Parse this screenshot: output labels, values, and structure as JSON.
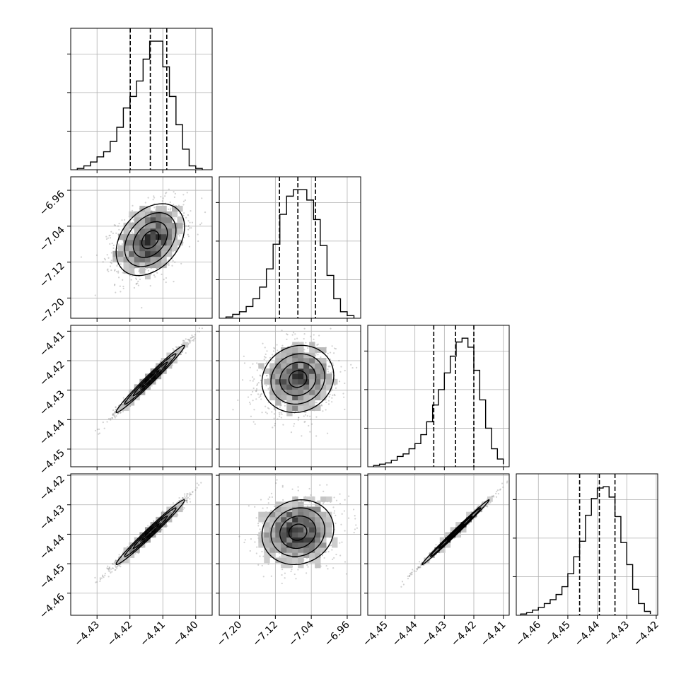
{
  "chart_data": {
    "type": "corner",
    "title": "",
    "grid": true,
    "colors": {
      "hist_line": "#000000",
      "contour": "#000000",
      "scatter": "#7f7f7f",
      "grid": "#b0b0b0",
      "density_dark": "#2b2b2b",
      "density_light": "#e6e6e6"
    },
    "parameters": [
      {
        "name": "",
        "range": [
          -4.438,
          -4.395
        ],
        "ticks": [
          -4.43,
          -4.42,
          -4.41,
          -4.4
        ],
        "tick_labels": [
          "−4.43",
          "−4.42",
          "−4.41",
          "−4.40"
        ],
        "quantiles": [
          -4.4199,
          -4.4138,
          -4.4088
        ],
        "hist": {
          "bin_edges": [
            -4.436,
            -4.434,
            -4.432,
            -4.43,
            -4.428,
            -4.426,
            -4.424,
            -4.422,
            -4.42,
            -4.418,
            -4.416,
            -4.414,
            -4.412,
            -4.41,
            -4.408,
            -4.406,
            -4.404,
            -4.402,
            -4.4,
            -4.398
          ],
          "counts": [
            1,
            3,
            6,
            10,
            14,
            22,
            33,
            48,
            57,
            69,
            86,
            100,
            100,
            80,
            57,
            35,
            16,
            3,
            1
          ]
        }
      },
      {
        "name": "",
        "range": [
          -7.245,
          -6.93
        ],
        "ticks": [
          -7.2,
          -7.12,
          -7.04,
          -6.96
        ],
        "tick_labels": [
          "−7.20",
          "−7.12",
          "−7.04",
          "−6.96"
        ],
        "quantiles": [
          -7.1108,
          -7.0699,
          -7.0306
        ],
        "hist": {
          "bin_edges": [
            -7.23,
            -7.215,
            -7.2,
            -7.185,
            -7.17,
            -7.155,
            -7.14,
            -7.125,
            -7.11,
            -7.095,
            -7.08,
            -7.065,
            -7.05,
            -7.035,
            -7.02,
            -7.005,
            -6.99,
            -6.975,
            -6.96,
            -6.945
          ],
          "counts": [
            1,
            3,
            5,
            9,
            15,
            24,
            38,
            57,
            80,
            94,
            99,
            99,
            91,
            76,
            56,
            33,
            15,
            5,
            2
          ]
        }
      },
      {
        "name": "",
        "range": [
          -4.456,
          -4.408
        ],
        "ticks": [
          -4.45,
          -4.44,
          -4.43,
          -4.42,
          -4.41
        ],
        "tick_labels": [
          "−4.45",
          "−4.44",
          "−4.43",
          "−4.42",
          "−4.41"
        ],
        "quantiles": [
          -4.4336,
          -4.4262,
          -4.42
        ],
        "hist": {
          "bin_edges": [
            -4.454,
            -4.452,
            -4.45,
            -4.448,
            -4.446,
            -4.444,
            -4.442,
            -4.44,
            -4.438,
            -4.436,
            -4.434,
            -4.432,
            -4.43,
            -4.428,
            -4.426,
            -4.424,
            -4.422,
            -4.42,
            -4.418,
            -4.416,
            -4.414,
            -4.412,
            -4.41
          ],
          "counts": [
            1,
            2,
            3,
            5,
            8,
            10,
            14,
            18,
            25,
            35,
            48,
            60,
            73,
            86,
            97,
            100,
            93,
            75,
            52,
            30,
            14,
            6,
            2
          ]
        }
      },
      {
        "name": "",
        "range": [
          -4.4675,
          -4.4195
        ],
        "ticks": [
          -4.46,
          -4.45,
          -4.44,
          -4.43,
          -4.42
        ],
        "tick_labels": [
          "−4.46",
          "−4.45",
          "−4.44",
          "−4.43",
          "−4.42"
        ],
        "quantiles": [
          -4.446,
          -4.4393,
          -4.434
        ],
        "hist": {
          "bin_edges": [
            -4.466,
            -4.464,
            -4.462,
            -4.46,
            -4.458,
            -4.456,
            -4.454,
            -4.452,
            -4.45,
            -4.448,
            -4.446,
            -4.444,
            -4.442,
            -4.44,
            -4.438,
            -4.436,
            -4.434,
            -4.432,
            -4.43,
            -4.428,
            -4.426,
            -4.424,
            -4.422
          ],
          "counts": [
            1,
            2,
            4,
            6,
            9,
            12,
            16,
            22,
            32,
            45,
            57,
            77,
            90,
            98,
            99,
            91,
            76,
            56,
            39,
            20,
            9,
            3,
            1
          ]
        }
      }
    ],
    "pairs": [
      {
        "row": 1,
        "col": 0,
        "mean": [
          -4.4138,
          -7.0699
        ],
        "sd": [
          0.0052,
          0.04
        ],
        "rho": 0.35
      },
      {
        "row": 2,
        "col": 0,
        "mean": [
          -4.4138,
          -4.4262
        ],
        "sd": [
          0.0052,
          0.0057
        ],
        "rho": 0.985
      },
      {
        "row": 2,
        "col": 1,
        "mean": [
          -7.0699,
          -4.4262
        ],
        "sd": [
          0.04,
          0.0057
        ],
        "rho": 0.1
      },
      {
        "row": 3,
        "col": 0,
        "mean": [
          -4.4138,
          -4.4393
        ],
        "sd": [
          0.0052,
          0.0055
        ],
        "rho": 0.985
      },
      {
        "row": 3,
        "col": 1,
        "mean": [
          -7.0699,
          -4.4393
        ],
        "sd": [
          0.04,
          0.0055
        ],
        "rho": 0.1
      },
      {
        "row": 3,
        "col": 2,
        "mean": [
          -4.4262,
          -4.4393
        ],
        "sd": [
          0.0057,
          0.0055
        ],
        "rho": 0.995
      }
    ]
  }
}
